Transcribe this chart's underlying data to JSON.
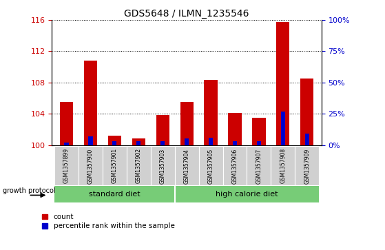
{
  "title": "GDS5648 / ILMN_1235546",
  "samples": [
    "GSM1357899",
    "GSM1357900",
    "GSM1357901",
    "GSM1357902",
    "GSM1357903",
    "GSM1357904",
    "GSM1357905",
    "GSM1357906",
    "GSM1357907",
    "GSM1357908",
    "GSM1357909"
  ],
  "count_values": [
    105.5,
    110.8,
    101.2,
    100.8,
    103.8,
    105.5,
    108.3,
    104.1,
    103.5,
    115.7,
    108.5
  ],
  "percentile_values": [
    2,
    7,
    3,
    3,
    3,
    5,
    6,
    3,
    3,
    27,
    9
  ],
  "y_min": 100,
  "y_max": 116,
  "y_ticks": [
    100,
    104,
    108,
    112,
    116
  ],
  "right_y_ticks": [
    0,
    25,
    50,
    75,
    100
  ],
  "right_y_labels": [
    "0%",
    "25%",
    "50%",
    "75%",
    "100%"
  ],
  "bar_color_red": "#cc0000",
  "bar_color_blue": "#0000cc",
  "bar_width": 0.55,
  "blue_bar_width": 0.18,
  "legend_count": "count",
  "legend_percentile": "percentile rank within the sample",
  "tick_label_color": "#cc0000",
  "right_tick_color": "#0000cc",
  "background_gray": "#d0d0d0",
  "group_green": "#77cc77",
  "group_label_standard": "standard diet",
  "group_label_high": "high calorie diet",
  "group_protocol_label": "growth protocol"
}
